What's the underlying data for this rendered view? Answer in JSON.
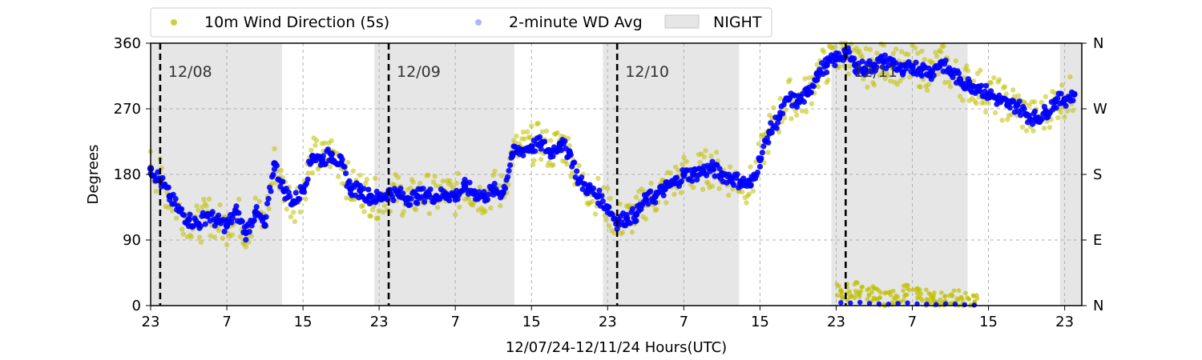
{
  "chart_data": {
    "type": "scatter",
    "title": "",
    "xlabel": "12/07/24-12/11/24  Hours(UTC)",
    "ylabel": "Degrees",
    "ylim": [
      0,
      360
    ],
    "xlim_hours": [
      23,
      120.8
    ],
    "yticks": [
      0,
      90,
      180,
      270,
      360
    ],
    "right_ticks": [
      {
        "value": 0,
        "label": "N"
      },
      {
        "value": 90,
        "label": "E"
      },
      {
        "value": 180,
        "label": "S"
      },
      {
        "value": 270,
        "label": "W"
      },
      {
        "value": 360,
        "label": "N"
      }
    ],
    "xtick_labels": [
      "23",
      "7",
      "15",
      "23",
      "7",
      "15",
      "23",
      "7",
      "15",
      "23",
      "7",
      "15",
      "23"
    ],
    "grid": true,
    "legend_position": "top-left",
    "colors": {
      "wd5s": "#bfbf00",
      "wd2min": "#0000ff",
      "night": "#e6e6e6",
      "day_line": "#000000"
    },
    "legend": [
      {
        "label": "10m Wind Direction (5s)",
        "kind": "dot",
        "color": "#bfbf00"
      },
      {
        "label": "2-minute WD Avg",
        "kind": "dot-light",
        "color": "#0000ff"
      },
      {
        "label": "NIGHT",
        "kind": "patch",
        "color": "#e6e6e6"
      }
    ],
    "day_markers": [
      {
        "hour": 24,
        "label": "12/08"
      },
      {
        "hour": 48,
        "label": "12/09"
      },
      {
        "hour": 72,
        "label": "12/10"
      },
      {
        "hour": 96,
        "label": "12/11"
      }
    ],
    "night_spans": [
      [
        23,
        36.8
      ],
      [
        46.5,
        61.2
      ],
      [
        70.5,
        84.8
      ],
      [
        94.5,
        108.8
      ],
      [
        118.5,
        120.8
      ]
    ],
    "series": [
      {
        "name": "10m Wind Direction (5s)",
        "x": [
          23,
          24,
          25,
          26,
          27,
          28,
          29,
          30,
          31,
          32,
          33,
          34,
          35,
          36,
          37,
          38,
          39,
          40,
          41,
          42,
          43,
          44,
          45,
          46,
          47,
          48,
          49,
          50,
          51,
          52,
          53,
          54,
          55,
          56,
          57,
          58,
          59,
          60,
          61,
          62,
          63,
          64,
          65,
          66,
          67,
          68,
          69,
          70,
          71,
          72,
          73,
          74,
          75,
          76,
          77,
          78,
          79,
          80,
          81,
          82,
          83,
          84,
          85,
          86,
          87,
          88,
          89,
          90,
          91,
          92,
          93,
          94,
          95,
          96,
          97,
          98,
          99,
          100,
          101,
          102,
          103,
          104,
          105,
          106,
          107,
          108,
          109,
          110,
          111,
          112,
          113,
          114,
          115,
          116,
          117,
          118,
          119,
          120
        ],
        "y": [
          190,
          175,
          150,
          130,
          120,
          110,
          125,
          115,
          110,
          130,
          100,
          130,
          110,
          195,
          160,
          140,
          160,
          205,
          200,
          210,
          195,
          160,
          160,
          150,
          145,
          155,
          155,
          145,
          150,
          155,
          150,
          155,
          150,
          165,
          155,
          150,
          160,
          155,
          210,
          215,
          220,
          225,
          210,
          225,
          210,
          170,
          160,
          150,
          135,
          115,
          120,
          125,
          145,
          150,
          160,
          170,
          180,
          180,
          185,
          190,
          180,
          175,
          170,
          165,
          200,
          240,
          260,
          285,
          280,
          290,
          320,
          330,
          340,
          350,
          330,
          325,
          330,
          335,
          335,
          320,
          330,
          325,
          320,
          335,
          320,
          310,
          305,
          300,
          290,
          285,
          275,
          275,
          260,
          255,
          265,
          280,
          285,
          290
        ]
      },
      {
        "name": "2-minute WD Avg",
        "x": [
          23,
          24,
          25,
          26,
          27,
          28,
          29,
          30,
          31,
          32,
          33,
          34,
          35,
          36,
          37,
          38,
          39,
          40,
          41,
          42,
          43,
          44,
          45,
          46,
          47,
          48,
          49,
          50,
          51,
          52,
          53,
          54,
          55,
          56,
          57,
          58,
          59,
          60,
          61,
          62,
          63,
          64,
          65,
          66,
          67,
          68,
          69,
          70,
          71,
          72,
          73,
          74,
          75,
          76,
          77,
          78,
          79,
          80,
          81,
          82,
          83,
          84,
          85,
          86,
          87,
          88,
          89,
          90,
          91,
          92,
          93,
          94,
          95,
          96,
          97,
          98,
          99,
          100,
          101,
          102,
          103,
          104,
          105,
          106,
          107,
          108,
          109,
          110,
          111,
          112,
          113,
          114,
          115,
          116,
          117,
          118,
          119,
          120
        ],
        "y": [
          188,
          172,
          150,
          130,
          118,
          112,
          125,
          115,
          110,
          128,
          100,
          128,
          110,
          195,
          158,
          142,
          160,
          205,
          200,
          208,
          195,
          160,
          158,
          150,
          147,
          155,
          153,
          147,
          150,
          153,
          150,
          153,
          150,
          163,
          155,
          150,
          158,
          155,
          208,
          213,
          218,
          222,
          210,
          222,
          210,
          170,
          160,
          150,
          135,
          115,
          120,
          125,
          145,
          150,
          160,
          168,
          180,
          180,
          185,
          188,
          180,
          175,
          170,
          165,
          200,
          238,
          258,
          283,
          280,
          290,
          318,
          330,
          338,
          348,
          330,
          325,
          330,
          335,
          333,
          320,
          328,
          325,
          320,
          333,
          320,
          310,
          303,
          300,
          290,
          283,
          275,
          275,
          262,
          257,
          265,
          280,
          283,
          290
        ]
      }
    ],
    "low_cluster": {
      "name": "10m Wind Direction (5s)",
      "x": [
        95,
        96,
        97,
        98,
        99,
        100,
        101,
        102,
        103,
        104,
        105,
        106,
        107,
        108,
        109
      ],
      "y": [
        20,
        18,
        22,
        15,
        12,
        10,
        14,
        18,
        12,
        10,
        8,
        12,
        10,
        6,
        4
      ]
    }
  }
}
